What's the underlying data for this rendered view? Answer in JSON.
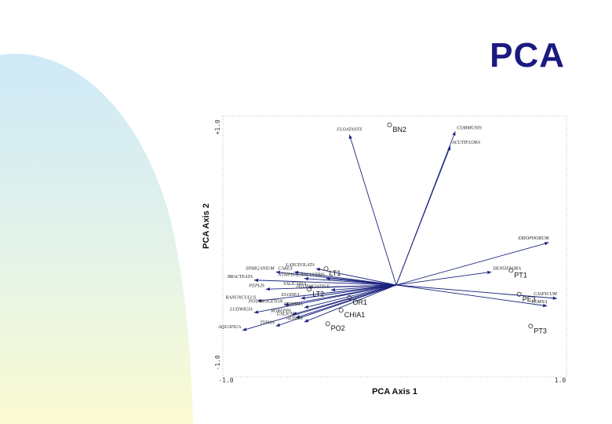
{
  "slide": {
    "title": "PCA"
  },
  "chart_data": {
    "type": "scatter",
    "title": "",
    "xlabel": "PCA Axis 1",
    "ylabel": "PCA Axis 2",
    "xlim": [
      -1.0,
      1.0
    ],
    "ylim": [
      -1.0,
      1.0
    ],
    "x_tick_labels": [
      "-1.0",
      "1.0"
    ],
    "y_tick_labels": [
      "-1.0",
      "+1.0"
    ],
    "grid": false,
    "sites": [
      {
        "label": "BN2",
        "x": -0.04,
        "y": 0.98
      },
      {
        "label": "LT1",
        "x": -0.42,
        "y": 0.1
      },
      {
        "label": "PT1",
        "x": 0.7,
        "y": 0.09
      },
      {
        "label": "LT2",
        "x": -0.52,
        "y": -0.05
      },
      {
        "label": "PE3",
        "x": 0.75,
        "y": -0.11
      },
      {
        "label": "OR1",
        "x": -0.28,
        "y": -0.15
      },
      {
        "label": "CHIA1",
        "x": -0.33,
        "y": -0.3
      },
      {
        "label": "PO2",
        "x": -0.41,
        "y": -0.46
      },
      {
        "label": "PT3",
        "x": 0.82,
        "y": -0.49
      }
    ],
    "variables": [
      {
        "label": "FLOATANTS",
        "x": -0.28,
        "y": 0.92
      },
      {
        "label": "COMMUNIS",
        "x": 0.36,
        "y": 0.94
      },
      {
        "label": "ACUTIFLORA",
        "x": 0.33,
        "y": 0.85
      },
      {
        "label": "ERIOPHORUM",
        "x": 0.93,
        "y": 0.26
      },
      {
        "label": "DENSIFLORA",
        "x": 0.58,
        "y": 0.08
      },
      {
        "label": "CASPICUM",
        "x": 0.98,
        "y": -0.16
      },
      {
        "label": "LEMNA",
        "x": 0.92,
        "y": -0.25
      },
      {
        "label": "LANCEOLATA",
        "x": -0.48,
        "y": 0.1
      },
      {
        "label": "CAREX",
        "x": -0.61,
        "y": 0.08
      },
      {
        "label": "SPARGANIUM",
        "x": -0.72,
        "y": 0.08
      },
      {
        "label": "NYMPHAEA",
        "x": -0.55,
        "y": 0.04
      },
      {
        "label": "BRACTEATA",
        "x": -0.85,
        "y": 0.03
      },
      {
        "label": "PALUSTRIS",
        "x": -0.42,
        "y": 0.04
      },
      {
        "label": "SALICARIA",
        "x": -0.53,
        "y": -0.03
      },
      {
        "label": "PEPLIS",
        "x": -0.78,
        "y": -0.05
      },
      {
        "label": "HYDROCOTYLE",
        "x": -0.39,
        "y": -0.06
      },
      {
        "label": "ELODEA",
        "x": -0.57,
        "y": -0.16
      },
      {
        "label": "RANUNCULUS",
        "x": -0.83,
        "y": -0.19
      },
      {
        "label": "POTAMOGETON",
        "x": -0.67,
        "y": -0.24
      },
      {
        "label": "MENTHA",
        "x": -0.55,
        "y": -0.27
      },
      {
        "label": "LUDWIGIA",
        "x": -0.85,
        "y": -0.33
      },
      {
        "label": "ROREPPA",
        "x": -0.62,
        "y": -0.35
      },
      {
        "label": "GALIUM",
        "x": -0.6,
        "y": -0.39
      },
      {
        "label": "ALISMA",
        "x": -0.55,
        "y": -0.44
      },
      {
        "label": "TYPHA",
        "x": -0.72,
        "y": -0.49
      },
      {
        "label": "AQUATICA",
        "x": -0.92,
        "y": -0.54
      }
    ]
  }
}
